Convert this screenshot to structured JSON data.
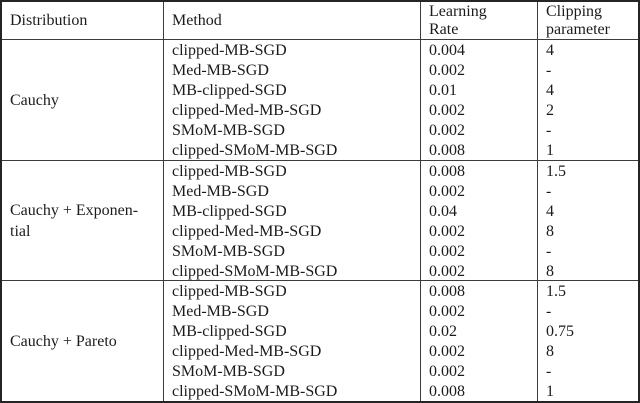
{
  "colors": {
    "text": "#1b1b1b",
    "border_outer": "#252525",
    "border_inner": "#3c3c3c",
    "background": "#ffffff"
  },
  "table": {
    "headers": [
      {
        "lines": [
          "Distribution"
        ]
      },
      {
        "lines": [
          "Method"
        ]
      },
      {
        "lines": [
          "Learning",
          "Rate"
        ]
      },
      {
        "lines": [
          "Clipping",
          "parameter"
        ]
      }
    ],
    "groups": [
      {
        "distribution_lines": [
          "Cauchy"
        ],
        "rows": [
          {
            "method": "clipped-MB-SGD",
            "lr": "0.004",
            "clip": "4"
          },
          {
            "method": "Med-MB-SGD",
            "lr": "0.002",
            "clip": "-"
          },
          {
            "method": "MB-clipped-SGD",
            "lr": "0.01",
            "clip": "4"
          },
          {
            "method": "clipped-Med-MB-SGD",
            "lr": "0.002",
            "clip": "2"
          },
          {
            "method": "SMoM-MB-SGD",
            "lr": "0.002",
            "clip": "-"
          },
          {
            "method": "clipped-SMoM-MB-SGD",
            "lr": "0.008",
            "clip": "1"
          }
        ]
      },
      {
        "distribution_lines": [
          "Cauchy + Exponen-",
          "tial"
        ],
        "rows": [
          {
            "method": "clipped-MB-SGD",
            "lr": "0.008",
            "clip": "1.5"
          },
          {
            "method": "Med-MB-SGD",
            "lr": "0.002",
            "clip": "-"
          },
          {
            "method": "MB-clipped-SGD",
            "lr": "0.04",
            "clip": "4"
          },
          {
            "method": "clipped-Med-MB-SGD",
            "lr": "0.002",
            "clip": "8"
          },
          {
            "method": "SMoM-MB-SGD",
            "lr": "0.002",
            "clip": "-"
          },
          {
            "method": "clipped-SMoM-MB-SGD",
            "lr": "0.002",
            "clip": "8"
          }
        ]
      },
      {
        "distribution_lines": [
          "Cauchy + Pareto"
        ],
        "rows": [
          {
            "method": "clipped-MB-SGD",
            "lr": "0.008",
            "clip": "1.5"
          },
          {
            "method": "Med-MB-SGD",
            "lr": "0.002",
            "clip": "-"
          },
          {
            "method": "MB-clipped-SGD",
            "lr": "0.02",
            "clip": "0.75"
          },
          {
            "method": "clipped-Med-MB-SGD",
            "lr": "0.002",
            "clip": "8"
          },
          {
            "method": "SMoM-MB-SGD",
            "lr": "0.002",
            "clip": "-"
          },
          {
            "method": "clipped-SMoM-MB-SGD",
            "lr": "0.008",
            "clip": "1"
          }
        ]
      }
    ]
  }
}
